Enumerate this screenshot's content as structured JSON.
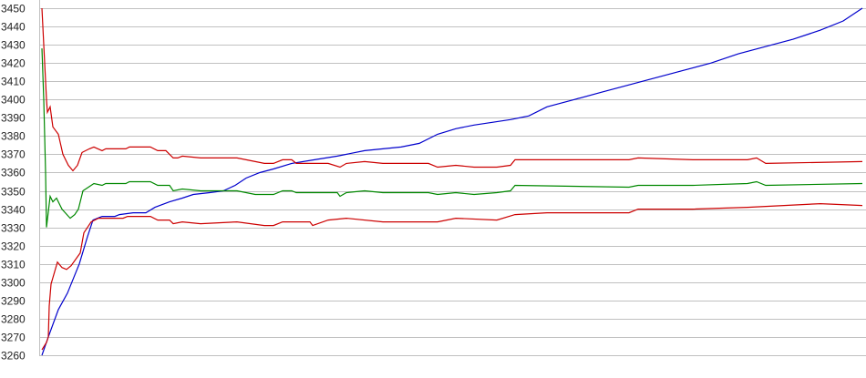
{
  "chart_data": {
    "type": "line",
    "title": "",
    "xlabel": "",
    "ylabel": "",
    "ylim": [
      3260,
      3450
    ],
    "yticks": [
      3260,
      3270,
      3280,
      3290,
      3300,
      3310,
      3320,
      3330,
      3340,
      3350,
      3360,
      3370,
      3380,
      3390,
      3400,
      3410,
      3420,
      3430,
      3440,
      3450
    ],
    "xlim": [
      0,
      900
    ],
    "grid": "horizontal",
    "legend": "none",
    "series": [
      {
        "color": "#0000cc",
        "points": [
          [
            0,
            3260
          ],
          [
            7,
            3270
          ],
          [
            18,
            3285
          ],
          [
            28,
            3294
          ],
          [
            41,
            3310
          ],
          [
            50,
            3325
          ],
          [
            56,
            3334
          ],
          [
            66,
            3336
          ],
          [
            80,
            3336
          ],
          [
            85,
            3337
          ],
          [
            100,
            3338
          ],
          [
            114,
            3338
          ],
          [
            124,
            3341
          ],
          [
            140,
            3344
          ],
          [
            154,
            3346
          ],
          [
            166,
            3348
          ],
          [
            184,
            3349
          ],
          [
            199,
            3350
          ],
          [
            212,
            3353
          ],
          [
            224,
            3357
          ],
          [
            239,
            3360
          ],
          [
            254,
            3362
          ],
          [
            274,
            3365
          ],
          [
            299,
            3367
          ],
          [
            324,
            3369
          ],
          [
            354,
            3372
          ],
          [
            394,
            3374
          ],
          [
            414,
            3376
          ],
          [
            434,
            3381
          ],
          [
            454,
            3384
          ],
          [
            474,
            3386
          ],
          [
            514,
            3389
          ],
          [
            534,
            3391
          ],
          [
            554,
            3396
          ],
          [
            584,
            3400
          ],
          [
            614,
            3404
          ],
          [
            644,
            3408
          ],
          [
            674,
            3412
          ],
          [
            704,
            3416
          ],
          [
            734,
            3420
          ],
          [
            764,
            3425
          ],
          [
            794,
            3429
          ],
          [
            824,
            3433
          ],
          [
            854,
            3438
          ],
          [
            879,
            3443
          ],
          [
            900,
            3450
          ]
        ]
      },
      {
        "color": "#cc0000",
        "points": [
          [
            0,
            3450
          ],
          [
            1,
            3440
          ],
          [
            3,
            3420
          ],
          [
            5,
            3400
          ],
          [
            6,
            3393
          ],
          [
            9,
            3396
          ],
          [
            12,
            3385
          ],
          [
            18,
            3381
          ],
          [
            23,
            3370
          ],
          [
            29,
            3364
          ],
          [
            34,
            3361
          ],
          [
            39,
            3364
          ],
          [
            44,
            3371
          ],
          [
            52,
            3373
          ],
          [
            57,
            3374
          ],
          [
            66,
            3372
          ],
          [
            70,
            3373
          ],
          [
            92,
            3373
          ],
          [
            96,
            3374
          ],
          [
            119,
            3374
          ],
          [
            127,
            3372
          ],
          [
            136,
            3372
          ],
          [
            144,
            3368
          ],
          [
            149,
            3368
          ],
          [
            154,
            3369
          ],
          [
            174,
            3368
          ],
          [
            214,
            3368
          ],
          [
            234,
            3366
          ],
          [
            244,
            3365
          ],
          [
            254,
            3365
          ],
          [
            264,
            3367
          ],
          [
            274,
            3367
          ],
          [
            279,
            3365
          ],
          [
            314,
            3365
          ],
          [
            327,
            3363
          ],
          [
            334,
            3365
          ],
          [
            354,
            3366
          ],
          [
            374,
            3365
          ],
          [
            424,
            3365
          ],
          [
            434,
            3363
          ],
          [
            454,
            3364
          ],
          [
            474,
            3363
          ],
          [
            499,
            3363
          ],
          [
            514,
            3364
          ],
          [
            519,
            3367
          ],
          [
            644,
            3367
          ],
          [
            654,
            3368
          ],
          [
            714,
            3367
          ],
          [
            774,
            3367
          ],
          [
            784,
            3368
          ],
          [
            794,
            3365
          ],
          [
            900,
            3366
          ]
        ]
      },
      {
        "color": "#008800",
        "points": [
          [
            0,
            3428
          ],
          [
            2,
            3400
          ],
          [
            4,
            3360
          ],
          [
            5,
            3330
          ],
          [
            9,
            3347
          ],
          [
            12,
            3344
          ],
          [
            16,
            3346
          ],
          [
            22,
            3340
          ],
          [
            31,
            3335
          ],
          [
            36,
            3337
          ],
          [
            40,
            3340
          ],
          [
            45,
            3350
          ],
          [
            57,
            3354
          ],
          [
            66,
            3353
          ],
          [
            70,
            3354
          ],
          [
            92,
            3354
          ],
          [
            96,
            3355
          ],
          [
            119,
            3355
          ],
          [
            127,
            3353
          ],
          [
            140,
            3353
          ],
          [
            144,
            3350
          ],
          [
            154,
            3351
          ],
          [
            174,
            3350
          ],
          [
            214,
            3350
          ],
          [
            234,
            3348
          ],
          [
            254,
            3348
          ],
          [
            264,
            3350
          ],
          [
            274,
            3350
          ],
          [
            279,
            3349
          ],
          [
            324,
            3349
          ],
          [
            327,
            3347
          ],
          [
            334,
            3349
          ],
          [
            354,
            3350
          ],
          [
            374,
            3349
          ],
          [
            424,
            3349
          ],
          [
            434,
            3348
          ],
          [
            454,
            3349
          ],
          [
            474,
            3348
          ],
          [
            499,
            3349
          ],
          [
            514,
            3350
          ],
          [
            519,
            3353
          ],
          [
            644,
            3352
          ],
          [
            654,
            3353
          ],
          [
            714,
            3353
          ],
          [
            774,
            3354
          ],
          [
            784,
            3355
          ],
          [
            794,
            3353
          ],
          [
            900,
            3354
          ]
        ]
      },
      {
        "color": "#cc0000",
        "points": [
          [
            0,
            3263
          ],
          [
            5,
            3267
          ],
          [
            7,
            3270
          ],
          [
            8,
            3287
          ],
          [
            10,
            3299
          ],
          [
            17,
            3311
          ],
          [
            22,
            3308
          ],
          [
            27,
            3307
          ],
          [
            32,
            3309
          ],
          [
            42,
            3316
          ],
          [
            46,
            3327
          ],
          [
            54,
            3333
          ],
          [
            62,
            3335
          ],
          [
            89,
            3335
          ],
          [
            94,
            3336
          ],
          [
            119,
            3336
          ],
          [
            127,
            3334
          ],
          [
            140,
            3334
          ],
          [
            144,
            3332
          ],
          [
            154,
            3333
          ],
          [
            174,
            3332
          ],
          [
            214,
            3333
          ],
          [
            244,
            3331
          ],
          [
            254,
            3331
          ],
          [
            264,
            3333
          ],
          [
            294,
            3333
          ],
          [
            297,
            3331
          ],
          [
            314,
            3334
          ],
          [
            334,
            3335
          ],
          [
            374,
            3333
          ],
          [
            434,
            3333
          ],
          [
            454,
            3335
          ],
          [
            499,
            3334
          ],
          [
            519,
            3337
          ],
          [
            554,
            3338
          ],
          [
            644,
            3338
          ],
          [
            654,
            3340
          ],
          [
            714,
            3340
          ],
          [
            774,
            3341
          ],
          [
            814,
            3342
          ],
          [
            854,
            3343
          ],
          [
            900,
            3342
          ]
        ]
      }
    ]
  }
}
